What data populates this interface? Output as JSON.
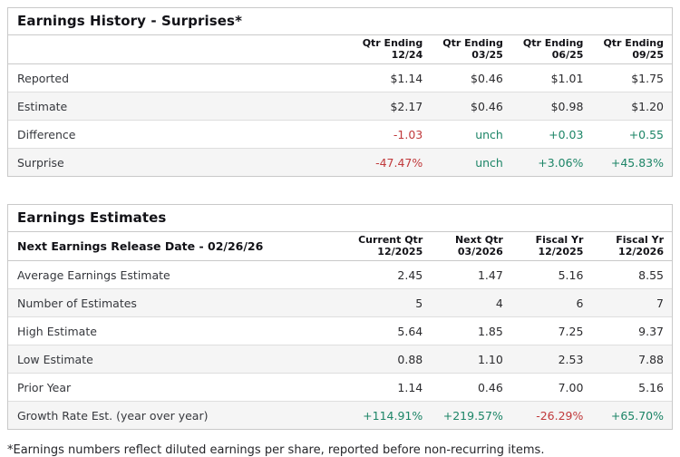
{
  "colors": {
    "positive": "#1d8567",
    "negative": "#c0393b",
    "border": "#c9c9c9",
    "alt_row_bg": "#f5f5f5"
  },
  "surprises_table": {
    "title": "Earnings History - Surprises*",
    "corner_label": "",
    "columns": [
      {
        "line1": "Qtr Ending",
        "line2": "12/24"
      },
      {
        "line1": "Qtr Ending",
        "line2": "03/25"
      },
      {
        "line1": "Qtr Ending",
        "line2": "06/25"
      },
      {
        "line1": "Qtr Ending",
        "line2": "09/25"
      }
    ],
    "rows": [
      {
        "label": "Reported",
        "values": [
          "$1.14",
          "$0.46",
          "$1.01",
          "$1.75"
        ],
        "value_colors": [
          "",
          "",
          "",
          ""
        ]
      },
      {
        "label": "Estimate",
        "values": [
          "$2.17",
          "$0.46",
          "$0.98",
          "$1.20"
        ],
        "value_colors": [
          "",
          "",
          "",
          ""
        ]
      },
      {
        "label": "Difference",
        "values": [
          "-1.03",
          "unch",
          "+0.03",
          "+0.55"
        ],
        "value_colors": [
          "neg",
          "pos",
          "pos",
          "pos"
        ]
      },
      {
        "label": "Surprise",
        "values": [
          "-47.47%",
          "unch",
          "+3.06%",
          "+45.83%"
        ],
        "value_colors": [
          "neg",
          "pos",
          "pos",
          "pos"
        ]
      }
    ]
  },
  "estimates_table": {
    "title": "Earnings Estimates",
    "corner_label": "Next Earnings Release Date - 02/26/26",
    "columns": [
      {
        "line1": "Current Qtr",
        "line2": "12/2025"
      },
      {
        "line1": "Next Qtr",
        "line2": "03/2026"
      },
      {
        "line1": "Fiscal Yr",
        "line2": "12/2025"
      },
      {
        "line1": "Fiscal Yr",
        "line2": "12/2026"
      }
    ],
    "rows": [
      {
        "label": "Average Earnings Estimate",
        "values": [
          "2.45",
          "1.47",
          "5.16",
          "8.55"
        ],
        "value_colors": [
          "",
          "",
          "",
          ""
        ]
      },
      {
        "label": "Number of Estimates",
        "values": [
          "5",
          "4",
          "6",
          "7"
        ],
        "value_colors": [
          "",
          "",
          "",
          ""
        ]
      },
      {
        "label": "High Estimate",
        "values": [
          "5.64",
          "1.85",
          "7.25",
          "9.37"
        ],
        "value_colors": [
          "",
          "",
          "",
          ""
        ]
      },
      {
        "label": "Low Estimate",
        "values": [
          "0.88",
          "1.10",
          "2.53",
          "7.88"
        ],
        "value_colors": [
          "",
          "",
          "",
          ""
        ]
      },
      {
        "label": "Prior Year",
        "values": [
          "1.14",
          "0.46",
          "7.00",
          "5.16"
        ],
        "value_colors": [
          "",
          "",
          "",
          ""
        ]
      },
      {
        "label": "Growth Rate Est. (year over year)",
        "values": [
          "+114.91%",
          "+219.57%",
          "-26.29%",
          "+65.70%"
        ],
        "value_colors": [
          "pos",
          "pos",
          "neg",
          "pos"
        ]
      }
    ]
  },
  "footnote": "*Earnings numbers reflect diluted earnings per share, reported before non-recurring items."
}
